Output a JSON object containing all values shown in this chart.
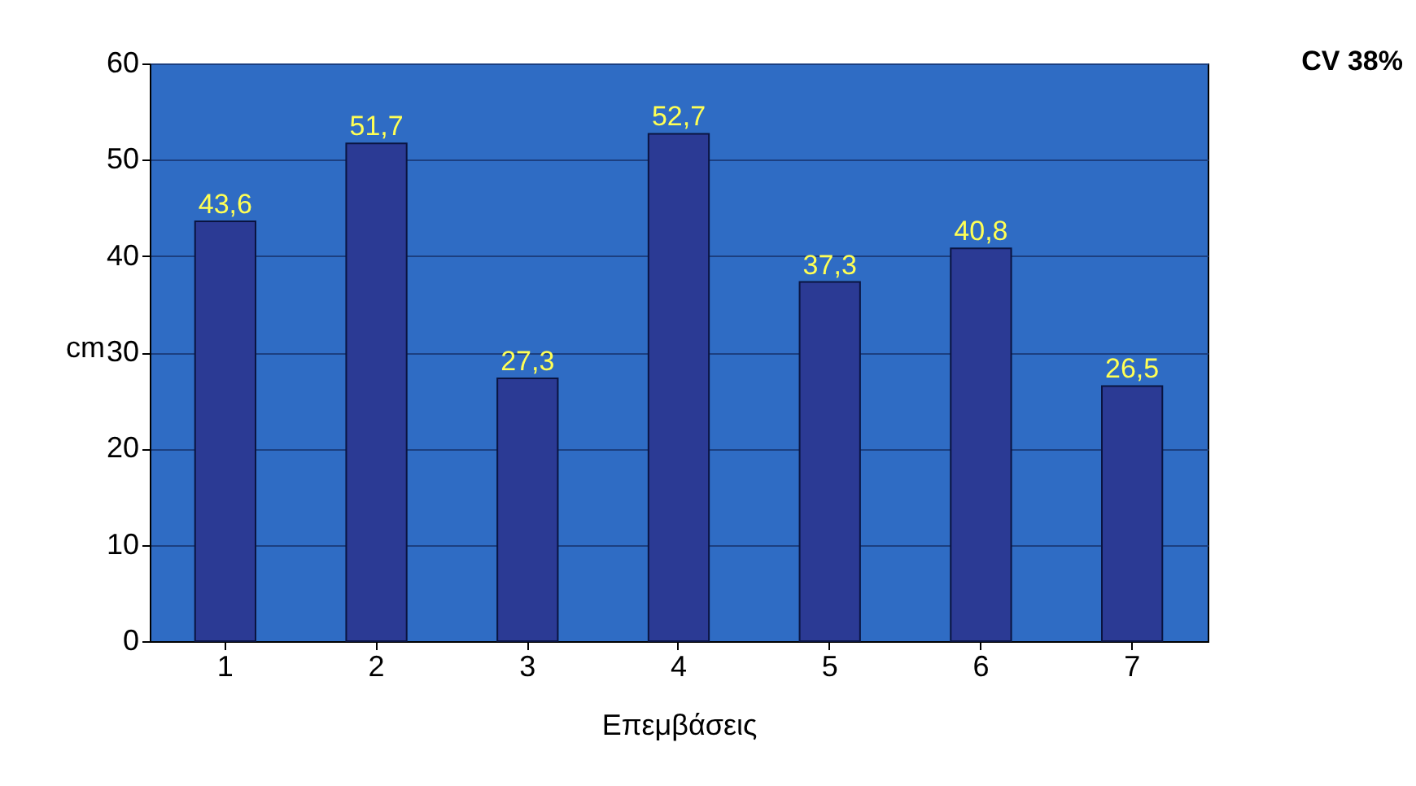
{
  "chart_data": {
    "type": "bar",
    "xlabel": "Επεμβάσεις",
    "ylabel": "cm",
    "categories": [
      "1",
      "2",
      "3",
      "4",
      "5",
      "6",
      "7"
    ],
    "values": [
      43.6,
      51.7,
      27.3,
      52.7,
      37.3,
      40.8,
      26.5
    ],
    "value_labels": [
      "43,6",
      "51,7",
      "27,3",
      "52,7",
      "37,3",
      "40,8",
      "26,5"
    ],
    "color": "#2b3a94",
    "ylim": [
      0,
      60
    ],
    "yticks": [
      0,
      10,
      20,
      30,
      40,
      50,
      60
    ],
    "grid": "y",
    "annotations": [
      "CV 38%"
    ]
  }
}
